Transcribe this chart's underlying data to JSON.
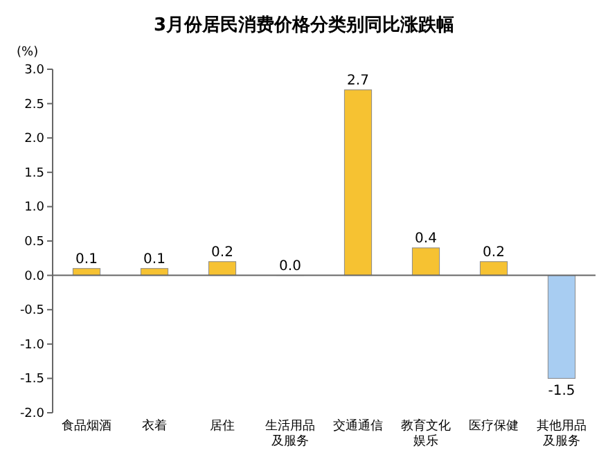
{
  "chart_data": {
    "type": "bar",
    "title": "3月份居民消费价格分类别同比涨跌幅",
    "ylabel": "(%)",
    "categories": [
      "食品烟酒",
      "衣着",
      "居住",
      "生活用品及服务",
      "交通通信",
      "教育文化娱乐",
      "医疗保健",
      "其他用品及服务"
    ],
    "values": [
      0.1,
      0.1,
      0.2,
      0.0,
      2.7,
      0.4,
      0.2,
      -1.5
    ],
    "colors": [
      "#f6c232",
      "#f6c232",
      "#f6c232",
      "#f6c232",
      "#f6c232",
      "#f6c232",
      "#f6c232",
      "#a8cdf2"
    ],
    "value_labels": [
      "0.1",
      "0.1",
      "0.2",
      "0.0",
      "2.7",
      "0.4",
      "0.2",
      "-1.5"
    ],
    "ylim": [
      -2.0,
      3.0
    ],
    "yticks": [
      {
        "value": 3.0,
        "label": "3.0"
      },
      {
        "value": 2.5,
        "label": "2.5"
      },
      {
        "value": 2.0,
        "label": "2.0"
      },
      {
        "value": 1.5,
        "label": "1.5"
      },
      {
        "value": 1.0,
        "label": "1.0"
      },
      {
        "value": 0.5,
        "label": "0.5"
      },
      {
        "value": 0.0,
        "label": "0.0"
      },
      {
        "value": -0.5,
        "label": "-0.5"
      },
      {
        "value": -1.0,
        "label": "-1.0"
      },
      {
        "value": -1.5,
        "label": "-1.5"
      },
      {
        "value": -2.0,
        "label": "-2.0"
      }
    ]
  }
}
